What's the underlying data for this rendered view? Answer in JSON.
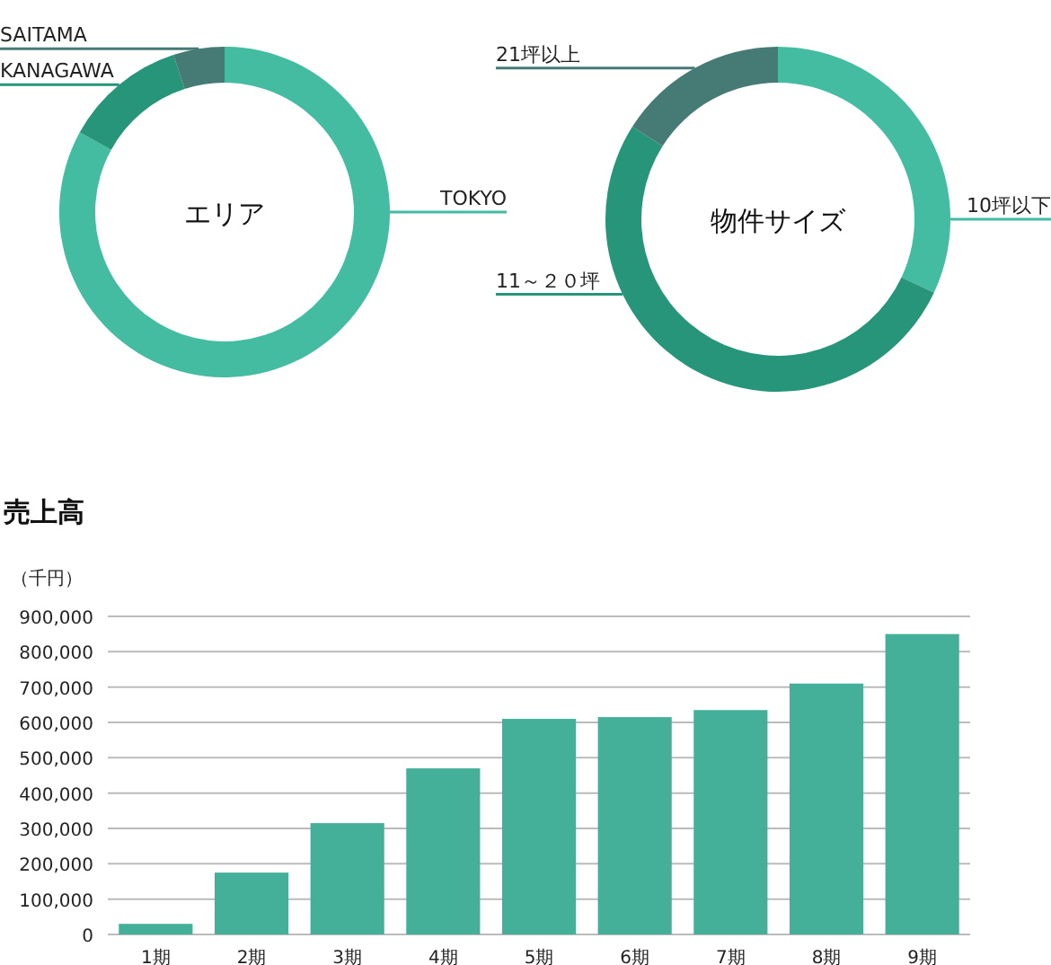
{
  "chart_data": [
    {
      "type": "donut",
      "title": "エリア",
      "categories": [
        "TOKYO",
        "KANAGAWA",
        "SAITAMA"
      ],
      "values": [
        83,
        12,
        5
      ],
      "colors": [
        "#43bca2",
        "#27957a",
        "#467a74"
      ]
    },
    {
      "type": "donut",
      "title": "物件サイズ",
      "categories": [
        "10坪以下",
        "11～２０坪",
        "21坪以上"
      ],
      "values": [
        32,
        52,
        16
      ],
      "colors": [
        "#43bca2",
        "#27957a",
        "#467a74"
      ]
    },
    {
      "type": "bar",
      "title": "売上高",
      "ylabel": "（千円）",
      "categories": [
        "1期",
        "2期",
        "3期",
        "4期",
        "5期",
        "6期",
        "7期",
        "8期",
        "9期"
      ],
      "values": [
        30000,
        175000,
        315000,
        470000,
        610000,
        615000,
        635000,
        710000,
        850000
      ],
      "color": "#45b09a",
      "ylim": [
        0,
        900000
      ],
      "yticks": [
        0,
        {
          "value": 100000,
          "label": "100,000"
        },
        {
          "value": 200000,
          "label": "200,000"
        },
        {
          "value": 300000,
          "label": "300,000"
        },
        {
          "value": 400000,
          "label": "400,000"
        },
        {
          "value": 500000,
          "label": "500,000"
        },
        {
          "value": 600000,
          "label": "600,000"
        },
        {
          "value": 700000,
          "label": "700,000"
        },
        {
          "value": 800000,
          "label": "800,000"
        },
        {
          "value": 900000,
          "label": "900,000"
        }
      ],
      "grid": "y"
    }
  ]
}
